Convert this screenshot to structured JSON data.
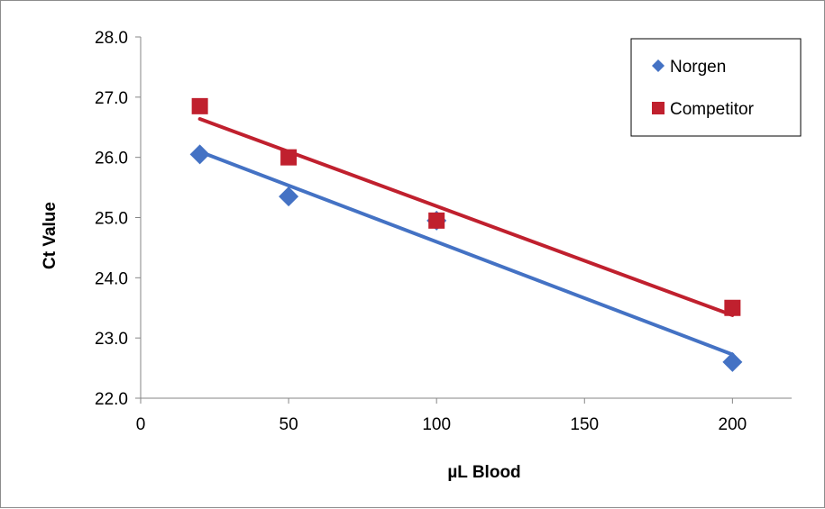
{
  "chart_data": {
    "type": "scatter",
    "title": "",
    "xlabel": "µL Blood",
    "ylabel": "Ct Value",
    "xlim": [
      0,
      220
    ],
    "ylim": [
      22.0,
      28.0
    ],
    "x_ticks": [
      "0",
      "50",
      "100",
      "150",
      "200"
    ],
    "y_ticks": [
      "22.0",
      "23.0",
      "24.0",
      "25.0",
      "26.0",
      "27.0",
      "28.0"
    ],
    "grid": false,
    "legend_position": "top-right",
    "trendlines": "linear",
    "series": [
      {
        "name": "Norgen",
        "marker": "diamond",
        "color": "#4472c4",
        "x": [
          20,
          50,
          100,
          200
        ],
        "y": [
          26.05,
          25.35,
          24.95,
          22.6
        ]
      },
      {
        "name": "Competitor",
        "marker": "square",
        "color": "#c0202e",
        "x": [
          20,
          50,
          100,
          200
        ],
        "y": [
          26.85,
          26.0,
          24.95,
          23.5
        ]
      }
    ]
  }
}
